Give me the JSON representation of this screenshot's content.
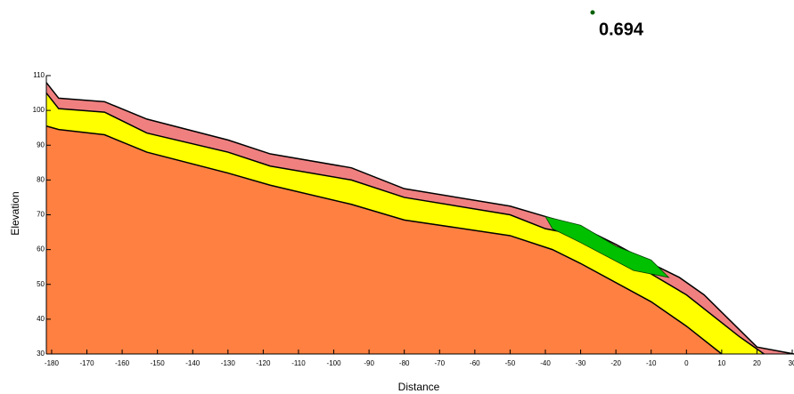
{
  "chart_data": {
    "type": "cross-section",
    "annotation": "0.694",
    "xlabel": "Distance",
    "ylabel": "Elevation",
    "xlim": [
      -181.5,
      30.5
    ],
    "ylim": [
      30,
      110
    ],
    "xticks": [
      -180,
      -170,
      -160,
      -150,
      -140,
      -130,
      -120,
      -110,
      -100,
      -90,
      -80,
      -70,
      -60,
      -50,
      -40,
      -30,
      -20,
      -10,
      0,
      10,
      20,
      30
    ],
    "yticks": [
      30,
      40,
      50,
      60,
      70,
      80,
      90,
      100,
      110
    ],
    "series": [
      {
        "color": "#f08080",
        "x": [
          -181.5,
          -178,
          -165,
          -153,
          -130,
          -118,
          -95,
          -80,
          -50,
          -40,
          -30,
          -20,
          -10,
          -2,
          5,
          20,
          30.5
        ],
        "values": [
          108,
          103.5,
          102.5,
          97.5,
          91.5,
          87.5,
          83.5,
          77.5,
          72.5,
          69.5,
          66.5,
          61.5,
          56,
          52,
          47,
          32,
          30
        ]
      },
      {
        "color": "#ffff00",
        "x": [
          -181.5,
          -178,
          -165,
          -153,
          -130,
          -118,
          -95,
          -80,
          -50,
          -40,
          -30,
          -20,
          -10,
          0,
          15,
          22
        ],
        "values": [
          105,
          100.5,
          99.5,
          93.5,
          88,
          84,
          80,
          75,
          70,
          66,
          64,
          59,
          53,
          47,
          35,
          30
        ]
      },
      {
        "color": "#ff8040",
        "x": [
          -181.5,
          -178,
          -165,
          -153,
          -130,
          -118,
          -95,
          -80,
          -50,
          -38,
          -30,
          -10,
          0,
          10
        ],
        "values": [
          95.5,
          94.5,
          93,
          88,
          82,
          78.5,
          73,
          68.5,
          64,
          60,
          56,
          45,
          38,
          30
        ]
      }
    ],
    "slip_mass": {
      "color": "#00c000",
      "x": [
        -40,
        -30,
        -20,
        -10,
        -5,
        -15,
        -30,
        -38
      ],
      "values": [
        69.5,
        67,
        61,
        57,
        52,
        54,
        62,
        66
      ]
    }
  }
}
